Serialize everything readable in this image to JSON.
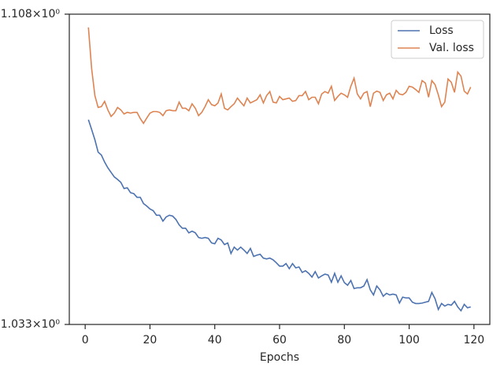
{
  "chart_data": {
    "type": "line",
    "xlabel": "Epochs",
    "x": [
      1,
      2,
      3,
      4,
      5,
      6,
      7,
      8,
      9,
      10,
      11,
      12,
      13,
      14,
      15,
      16,
      17,
      18,
      19,
      20,
      21,
      22,
      23,
      24,
      25,
      26,
      27,
      28,
      29,
      30,
      31,
      32,
      33,
      34,
      35,
      36,
      37,
      38,
      39,
      40,
      41,
      42,
      43,
      44,
      45,
      46,
      47,
      48,
      49,
      50,
      51,
      52,
      53,
      54,
      55,
      56,
      57,
      58,
      59,
      60,
      61,
      62,
      63,
      64,
      65,
      66,
      67,
      68,
      69,
      70,
      71,
      72,
      73,
      74,
      75,
      76,
      77,
      78,
      79,
      80,
      81,
      82,
      83,
      84,
      85,
      86,
      87,
      88,
      89,
      90,
      91,
      92,
      93,
      94,
      95,
      96,
      97,
      98,
      99,
      100,
      101,
      102,
      103,
      104,
      105,
      106,
      107,
      108,
      109,
      110,
      111,
      112,
      113,
      114,
      115,
      116,
      117,
      118,
      119
    ],
    "series": [
      {
        "name": "Loss",
        "color": "#4c72b0",
        "values": [
          1.0819,
          1.0795,
          1.077,
          1.074,
          1.0733,
          1.0716,
          1.0702,
          1.0691,
          1.068,
          1.0674,
          1.0667,
          1.0652,
          1.0654,
          1.0642,
          1.064,
          1.0631,
          1.0631,
          1.0616,
          1.061,
          1.0603,
          1.0599,
          1.0588,
          1.0588,
          1.0574,
          1.0584,
          1.0588,
          1.0586,
          1.0578,
          1.0565,
          1.0557,
          1.0557,
          1.0546,
          1.055,
          1.0546,
          1.0535,
          1.0533,
          1.0535,
          1.0533,
          1.0522,
          1.052,
          1.0533,
          1.0529,
          1.0518,
          1.0522,
          1.0497,
          1.0512,
          1.0505,
          1.0512,
          1.0505,
          1.0497,
          1.0509,
          1.049,
          1.0493,
          1.0495,
          1.0486,
          1.0484,
          1.0486,
          1.0482,
          1.0475,
          1.0467,
          1.0467,
          1.0473,
          1.0461,
          1.0473,
          1.0463,
          1.0465,
          1.0452,
          1.0456,
          1.045,
          1.0441,
          1.0454,
          1.0439,
          1.0444,
          1.0448,
          1.0446,
          1.0429,
          1.045,
          1.0429,
          1.0444,
          1.0428,
          1.0422,
          1.0433,
          1.0414,
          1.0416,
          1.0416,
          1.042,
          1.0435,
          1.0411,
          1.0399,
          1.042,
          1.0411,
          1.0396,
          1.0403,
          1.0399,
          1.0401,
          1.0399,
          1.038,
          1.0394,
          1.0392,
          1.0392,
          1.0382,
          1.0379,
          1.0379,
          1.038,
          1.0382,
          1.0384,
          1.0405,
          1.039,
          1.0365,
          1.0379,
          1.0373,
          1.0377,
          1.0375,
          1.0384,
          1.0371,
          1.0362,
          1.0377,
          1.0369,
          1.0371
        ]
      },
      {
        "name": "Val. loss",
        "color": "#dd8452",
        "values": [
          1.1047,
          1.0944,
          1.0878,
          1.0849,
          1.0851,
          1.0864,
          1.0843,
          1.0827,
          1.0835,
          1.0849,
          1.0843,
          1.0833,
          1.0837,
          1.0835,
          1.0837,
          1.0837,
          1.0822,
          1.081,
          1.0823,
          1.0835,
          1.0839,
          1.0839,
          1.0837,
          1.0829,
          1.0841,
          1.0843,
          1.0841,
          1.0841,
          1.0862,
          1.0847,
          1.0847,
          1.0841,
          1.0858,
          1.0847,
          1.0829,
          1.0837,
          1.0851,
          1.0868,
          1.0856,
          1.0853,
          1.086,
          1.0882,
          1.0847,
          1.0843,
          1.0851,
          1.0858,
          1.0872,
          1.0862,
          1.0853,
          1.0872,
          1.086,
          1.0864,
          1.0868,
          1.088,
          1.086,
          1.0878,
          1.0888,
          1.0862,
          1.086,
          1.0876,
          1.0868,
          1.087,
          1.0872,
          1.0864,
          1.0866,
          1.0878,
          1.0878,
          1.0888,
          1.0868,
          1.0874,
          1.0874,
          1.0858,
          1.0882,
          1.0888,
          1.0884,
          1.0901,
          1.0866,
          1.0876,
          1.0884,
          1.088,
          1.0874,
          1.0901,
          1.0921,
          1.0882,
          1.087,
          1.0884,
          1.0888,
          1.0851,
          1.0884,
          1.0889,
          1.0886,
          1.0866,
          1.088,
          1.0884,
          1.087,
          1.0891,
          1.0882,
          1.088,
          1.0886,
          1.0901,
          1.0899,
          1.0893,
          1.0886,
          1.0915,
          1.0909,
          1.0874,
          1.0915,
          1.0905,
          1.088,
          1.0851,
          1.0862,
          1.0919,
          1.0911,
          1.0886,
          1.0936,
          1.0926,
          1.0889,
          1.0882,
          1.0899
        ]
      }
    ],
    "xlim": [
      -4.9,
      124.9
    ],
    "xticks": [
      0,
      20,
      40,
      60,
      80,
      100,
      120
    ],
    "ylim": [
      1.033,
      1.108
    ],
    "ylog": true,
    "yticks": [
      {
        "value": 1.033,
        "label": "1.033×10⁰"
      },
      {
        "value": 1.108,
        "label": "1.108×10⁰"
      }
    ],
    "legend": "upper right"
  }
}
